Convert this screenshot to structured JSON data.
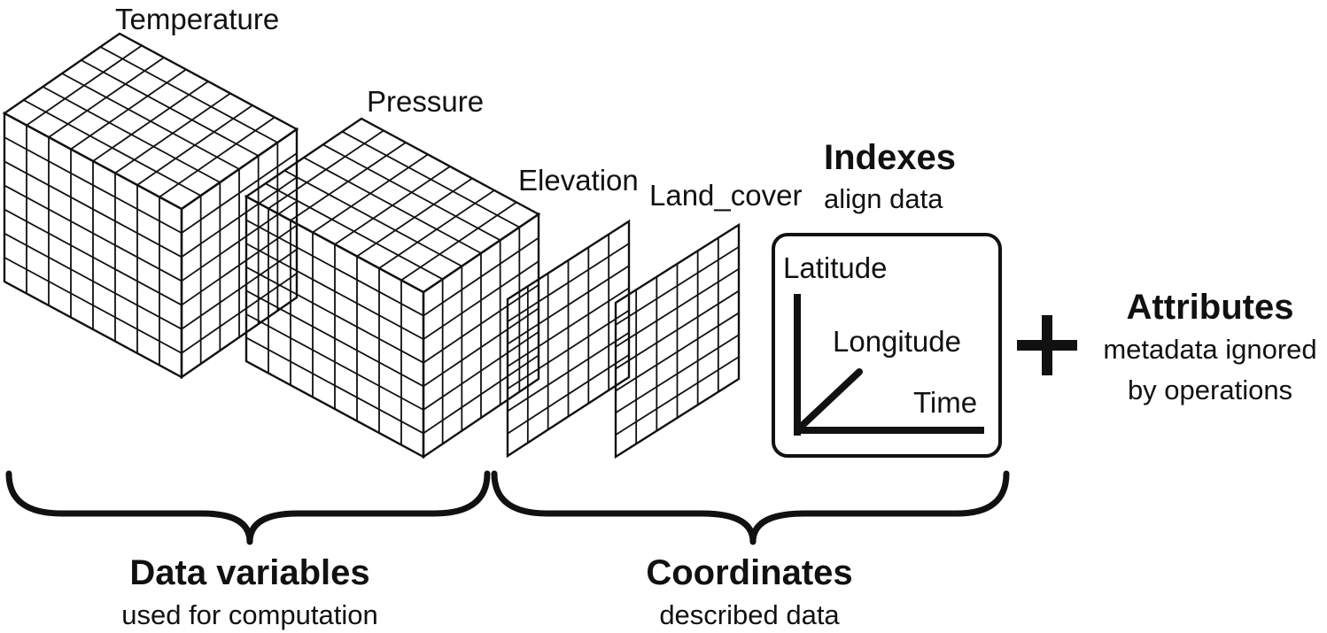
{
  "variables": {
    "temperature": "Temperature",
    "pressure": "Pressure"
  },
  "coordinates_arrays": {
    "elevation": "Elevation",
    "land_cover": "Land_cover"
  },
  "indexes": {
    "title": "Indexes",
    "subtitle": "align data",
    "axes": {
      "latitude": "Latitude",
      "longitude": "Longitude",
      "time": "Time"
    }
  },
  "attributes": {
    "title": "Attributes",
    "subtitle_line1": "metadata ignored",
    "subtitle_line2": "by operations"
  },
  "groups": {
    "data_variables": {
      "title": "Data variables",
      "subtitle": "used for computation"
    },
    "coordinates": {
      "title": "Coordinates",
      "subtitle": "described data"
    }
  },
  "colors": {
    "temperature_front": "#5aa5dc",
    "temperature_top": "#2a7cc4",
    "temperature_side": "#2574b9",
    "pressure_front": "#d9757a",
    "pressure_top": "#d4676d",
    "pressure_side": "#f2c0bb",
    "elevation": "#fde9cc",
    "land_cover": "#e6aeb1"
  },
  "icons": {
    "plus": "plus-icon"
  }
}
